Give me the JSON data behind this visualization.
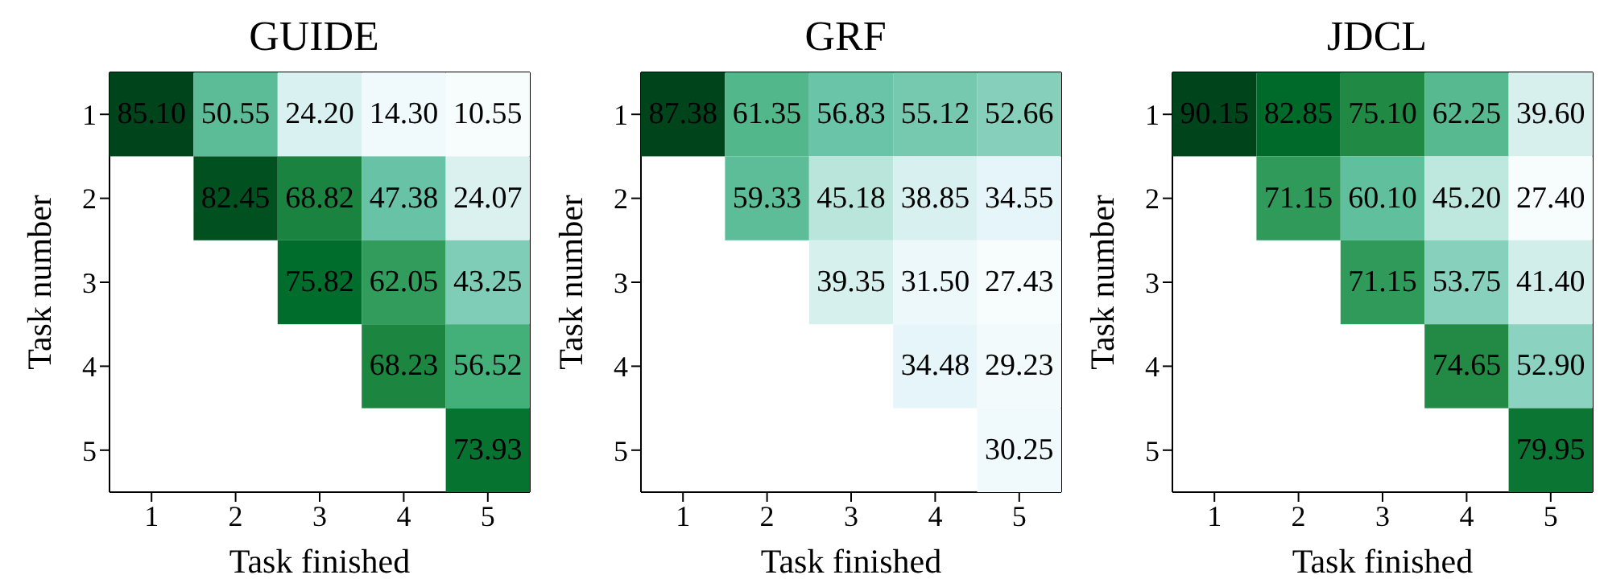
{
  "chart_data": [
    {
      "type": "heatmap",
      "title": "GUIDE",
      "xlabel": "Task finished",
      "ylabel": "Task number",
      "categories": [
        "1",
        "2",
        "3",
        "4",
        "5"
      ],
      "y_categories": [
        "1",
        "2",
        "3",
        "4",
        "5"
      ],
      "cells": [
        [
          85.1,
          50.55,
          24.2,
          14.3,
          10.55
        ],
        [
          null,
          82.45,
          68.82,
          47.38,
          24.07
        ],
        [
          null,
          null,
          75.82,
          62.05,
          43.25
        ],
        [
          null,
          null,
          null,
          68.23,
          56.52
        ],
        [
          null,
          null,
          null,
          null,
          73.93
        ]
      ],
      "cell_labels": [
        [
          "85.10",
          "50.55",
          "24.20",
          "14.30",
          "10.55"
        ],
        [
          null,
          "82.45",
          "68.82",
          "47.38",
          "24.07"
        ],
        [
          null,
          null,
          "75.82",
          "62.05",
          "43.25"
        ],
        [
          null,
          null,
          null,
          "68.23",
          "56.52"
        ],
        [
          null,
          null,
          null,
          null,
          "73.93"
        ]
      ]
    },
    {
      "type": "heatmap",
      "title": "GRF",
      "xlabel": "Task finished",
      "ylabel": "Task number",
      "categories": [
        "1",
        "2",
        "3",
        "4",
        "5"
      ],
      "y_categories": [
        "1",
        "2",
        "3",
        "4",
        "5"
      ],
      "cells": [
        [
          87.38,
          61.35,
          56.83,
          55.12,
          52.66
        ],
        [
          null,
          59.33,
          45.18,
          38.85,
          34.55
        ],
        [
          null,
          null,
          39.35,
          31.5,
          27.43
        ],
        [
          null,
          null,
          null,
          34.48,
          29.23
        ],
        [
          null,
          null,
          null,
          null,
          30.25
        ]
      ],
      "cell_labels": [
        [
          "87.38",
          "61.35",
          "56.83",
          "55.12",
          "52.66"
        ],
        [
          null,
          "59.33",
          "45.18",
          "38.85",
          "34.55"
        ],
        [
          null,
          null,
          "39.35",
          "31.50",
          "27.43"
        ],
        [
          null,
          null,
          null,
          "34.48",
          "29.23"
        ],
        [
          null,
          null,
          null,
          null,
          "30.25"
        ]
      ]
    },
    {
      "type": "heatmap",
      "title": "JDCL",
      "xlabel": "Task finished",
      "ylabel": "Task number",
      "categories": [
        "1",
        "2",
        "3",
        "4",
        "5"
      ],
      "y_categories": [
        "1",
        "2",
        "3",
        "4",
        "5"
      ],
      "cells": [
        [
          90.15,
          82.85,
          75.1,
          62.25,
          39.6
        ],
        [
          null,
          71.15,
          60.1,
          45.2,
          27.4
        ],
        [
          null,
          null,
          71.15,
          53.75,
          41.4
        ],
        [
          null,
          null,
          null,
          74.65,
          52.9
        ],
        [
          null,
          null,
          null,
          null,
          79.95
        ]
      ],
      "cell_labels": [
        [
          "90.15",
          "82.85",
          "75.10",
          "62.25",
          "39.60"
        ],
        [
          null,
          "71.15",
          "60.10",
          "45.20",
          "27.40"
        ],
        [
          null,
          null,
          "71.15",
          "53.75",
          "41.40"
        ],
        [
          null,
          null,
          null,
          "74.65",
          "52.90"
        ],
        [
          null,
          null,
          null,
          null,
          "79.95"
        ]
      ]
    }
  ]
}
